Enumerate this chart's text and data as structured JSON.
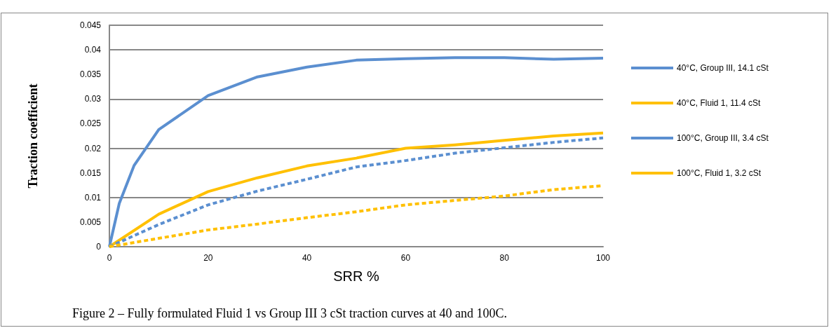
{
  "chart_data": {
    "type": "line",
    "xlabel": "SRR %",
    "ylabel": "Traction coefficient",
    "annotations": [
      "Figure 2 – Fully formulated Fluid 1 vs Group III 3 cSt traction curves at 40 and 100C."
    ],
    "xlim": [
      0,
      100
    ],
    "xticks": [
      0,
      20,
      40,
      60,
      80,
      100
    ],
    "ylim": [
      0,
      0.045
    ],
    "yticks": [
      0,
      0.005,
      0.01,
      0.015,
      0.02,
      0.025,
      0.03,
      0.035,
      0.04,
      0.045
    ],
    "grid": "y",
    "legend": "right",
    "marker": "none",
    "series": [
      {
        "name": "40°C, Group III, 14.1 cSt",
        "color": "#5b8fd0",
        "line_style": "solid",
        "x": [
          0,
          2,
          5,
          10,
          20,
          30,
          40,
          50,
          60,
          70,
          80,
          90,
          100
        ],
        "values": [
          0,
          0.0088,
          0.0165,
          0.0238,
          0.0307,
          0.0345,
          0.0365,
          0.0379,
          0.0382,
          0.0384,
          0.0384,
          0.0381,
          0.0383
        ]
      },
      {
        "name": "40°C, Fluid 1, 11.4 cSt",
        "color": "#ffc000",
        "line_style": "solid",
        "x": [
          0,
          10,
          20,
          30,
          40,
          50,
          60,
          70,
          80,
          90,
          100
        ],
        "values": [
          0,
          0.0066,
          0.0112,
          0.014,
          0.0164,
          0.018,
          0.02,
          0.0207,
          0.0216,
          0.0225,
          0.0231
        ]
      },
      {
        "name": "100°C, Group III, 3.4 cSt",
        "color": "#5b8fd0",
        "line_style": "dashed",
        "x": [
          0,
          10,
          20,
          30,
          40,
          50,
          60,
          70,
          80,
          90,
          100
        ],
        "values": [
          0,
          0.0045,
          0.0085,
          0.0113,
          0.0137,
          0.0162,
          0.0175,
          0.019,
          0.0201,
          0.0212,
          0.0221
        ]
      },
      {
        "name": "100°C, Fluid 1, 3.2 cSt",
        "color": "#ffc000",
        "line_style": "dashed",
        "x": [
          0,
          10,
          20,
          30,
          40,
          50,
          60,
          70,
          80,
          90,
          100
        ],
        "values": [
          0,
          0.0017,
          0.0034,
          0.0046,
          0.0059,
          0.0071,
          0.0085,
          0.0094,
          0.0103,
          0.0116,
          0.0124
        ]
      }
    ]
  }
}
